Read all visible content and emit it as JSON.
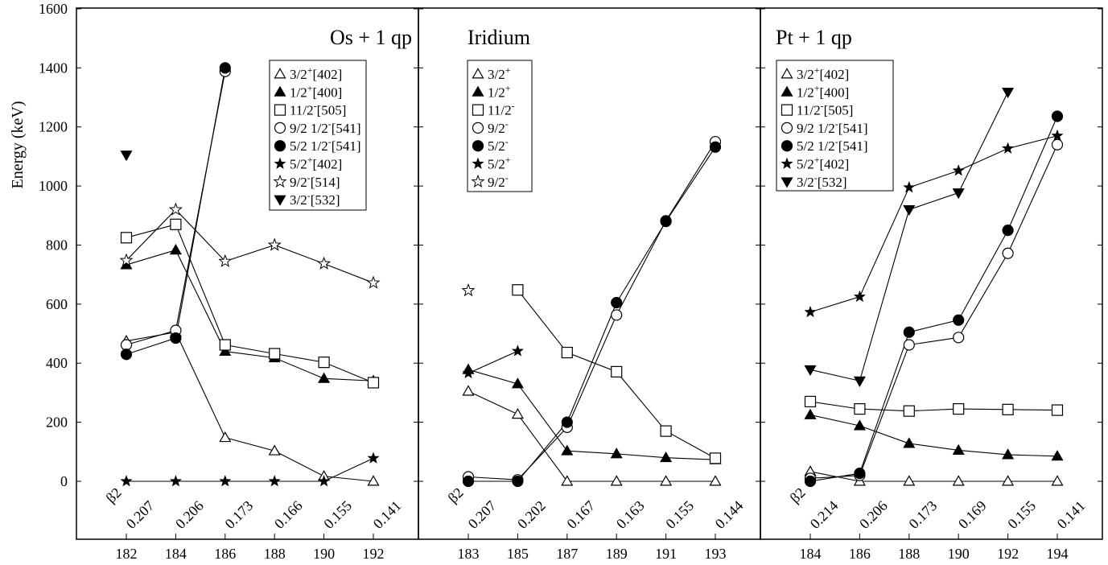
{
  "chart_data": {
    "type": "line",
    "ylabel": "Energy (keV)",
    "ylim": [
      -150,
      1600
    ],
    "yticks": [
      0,
      200,
      400,
      600,
      800,
      1000,
      1200,
      1400,
      1600
    ],
    "beta_label": "β2",
    "panels": [
      {
        "title": "Os + 1 qp",
        "x": [
          182,
          184,
          186,
          188,
          190,
          192
        ],
        "beta2": [
          "0.207",
          "0.206",
          "0.173",
          "0.166",
          "0.155",
          "0.141"
        ],
        "legend_position": "top-right",
        "series": [
          {
            "name": "3/2+[402]",
            "marker": "triangle-open",
            "values": [
              475,
              505,
              148,
              103,
              17,
              0
            ]
          },
          {
            "name": "1/2+[400]",
            "marker": "triangle-filled",
            "values": [
              733,
              783,
              440,
              418,
              348,
              340
            ]
          },
          {
            "name": "11/2-[505]",
            "marker": "square-open",
            "values": [
              825,
              870,
              462,
              432,
              403,
              334
            ]
          },
          {
            "name": "9/2 1/2-[541]",
            "marker": "circle-open",
            "values": [
              462,
              511,
              1388,
              null,
              null,
              null
            ]
          },
          {
            "name": "5/2 1/2-[541]",
            "marker": "circle-filled",
            "values": [
              430,
              485,
              1400,
              null,
              null,
              null
            ]
          },
          {
            "name": "5/2+[402]",
            "marker": "star-filled",
            "values": [
              0,
              0,
              0,
              0,
              0,
              78
            ]
          },
          {
            "name": "9/2-[514]",
            "marker": "star-open",
            "values": [
              748,
              920,
              745,
              800,
              737,
              672
            ]
          },
          {
            "name": "3/2-[532]",
            "marker": "triangle-down-filled",
            "values": [
              1105,
              null,
              null,
              null,
              null,
              null
            ]
          }
        ]
      },
      {
        "title": "Iridium",
        "x": [
          183,
          185,
          187,
          189,
          191,
          193
        ],
        "beta2": [
          "0.207",
          "0.202",
          "0.167",
          "0.163",
          "0.155",
          "0.144"
        ],
        "legend_position": "top-left",
        "series": [
          {
            "name": "3/2+",
            "marker": "triangle-open",
            "values": [
              305,
              227,
              0,
              0,
              0,
              0
            ]
          },
          {
            "name": "1/2+",
            "marker": "triangle-filled",
            "values": [
              378,
              330,
              103,
              93,
              80,
              73
            ]
          },
          {
            "name": "11/2-",
            "marker": "square-open",
            "values": [
              null,
              648,
              436,
              371,
              170,
              78
            ]
          },
          {
            "name": "9/2-",
            "marker": "circle-open",
            "values": [
              15,
              5,
              183,
              563,
              882,
              1150
            ]
          },
          {
            "name": "5/2-",
            "marker": "circle-filled",
            "values": [
              0,
              0,
              200,
              605,
              880,
              1132
            ]
          },
          {
            "name": "5/2+",
            "marker": "star-filled",
            "values": [
              366,
              441,
              null,
              null,
              null,
              null
            ]
          },
          {
            "name": "9/2-",
            "marker": "star-open",
            "values": [
              646,
              null,
              null,
              null,
              null,
              null
            ]
          }
        ]
      },
      {
        "title": "Pt + 1 qp",
        "x": [
          184,
          186,
          188,
          190,
          192,
          194
        ],
        "beta2": [
          "0.214",
          "0.206",
          "0.173",
          "0.169",
          "0.155",
          "0.141"
        ],
        "legend_position": "top-left",
        "series": [
          {
            "name": "3/2+[402]",
            "marker": "triangle-open",
            "values": [
              33,
              0,
              0,
              0,
              0,
              0
            ]
          },
          {
            "name": "1/2+[400]",
            "marker": "triangle-filled",
            "values": [
              225,
              188,
              128,
              105,
              90,
              85
            ]
          },
          {
            "name": "11/2-[505]",
            "marker": "square-open",
            "values": [
              270,
              245,
              238,
              245,
              243,
              241
            ]
          },
          {
            "name": "9/2 1/2-[541]",
            "marker": "circle-open",
            "values": [
              10,
              20,
              462,
              487,
              772,
              1140
            ]
          },
          {
            "name": "5/2 1/2-[541]",
            "marker": "circle-filled",
            "values": [
              0,
              27,
              505,
              546,
              850,
              1236
            ]
          },
          {
            "name": "5/2+[402]",
            "marker": "star-filled",
            "values": [
              573,
              625,
              995,
              1052,
              1127,
              1170
            ]
          },
          {
            "name": "3/2-[532]",
            "marker": "triangle-down-filled",
            "values": [
              378,
              340,
              920,
              977,
              1318,
              null
            ]
          }
        ]
      }
    ]
  }
}
